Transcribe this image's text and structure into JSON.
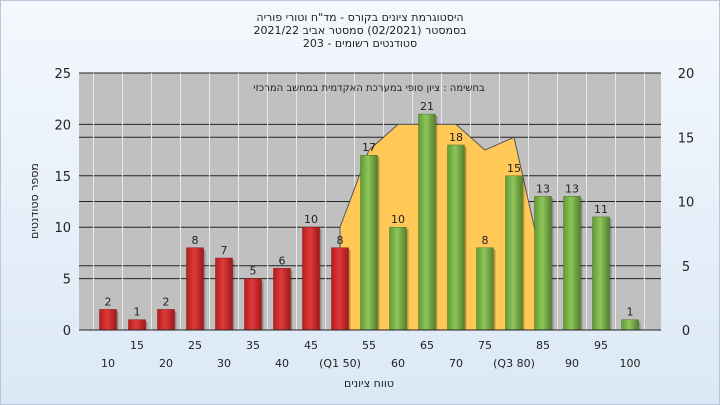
{
  "titles": [
    "היסטוגרמת ציונים בקורס - מד\"ח וטורי פוריה",
    "בסמסטר  (02/2021)  סמסטר אביב 2021/22",
    "סטודנטים רשומים - 203"
  ],
  "colors": {
    "below_median_bar": "#e03a3a",
    "above_median_bar": "#8ec65a",
    "cumulative_area": "#ffc857",
    "plot_background": "#c0c0c0"
  },
  "chart_data": {
    "type": "bar",
    "title": "היסטוגרמת ציונים בקורס - מד\"ח וטורי פוריה",
    "xlabel": "טווח ציונים",
    "ylabel": "מספר סטודנטים",
    "annotation": "בחשימה : ציון סופי במערכת האקדמית במחשב המרכזי",
    "ylim": [
      0,
      25
    ],
    "y2lim": [
      0,
      20
    ],
    "yticks": [
      0,
      5,
      10,
      15,
      20,
      25
    ],
    "y2ticks": [
      0,
      5,
      10,
      15,
      20
    ],
    "categories": [
      "10",
      "15",
      "20",
      "25",
      "30",
      "35",
      "40",
      "45",
      "(Q1 50)",
      "55",
      "60",
      "65",
      "70",
      "75",
      "(Q3 80)",
      "85",
      "90",
      "95",
      "100"
    ],
    "values": [
      2,
      1,
      2,
      8,
      7,
      5,
      6,
      10,
      8,
      17,
      10,
      21,
      18,
      8,
      15,
      13,
      13,
      11,
      1
    ],
    "bar_color_groups": [
      "below",
      "below",
      "below",
      "below",
      "below",
      "below",
      "below",
      "below",
      "below",
      "above",
      "above",
      "above",
      "above",
      "above",
      "above",
      "above",
      "above",
      "above",
      "above"
    ],
    "area_series": {
      "x": [
        50,
        55,
        60,
        65,
        70,
        75,
        80,
        85
      ],
      "y": [
        8,
        14,
        16,
        16,
        16,
        14,
        15,
        5
      ]
    },
    "grid": true
  }
}
